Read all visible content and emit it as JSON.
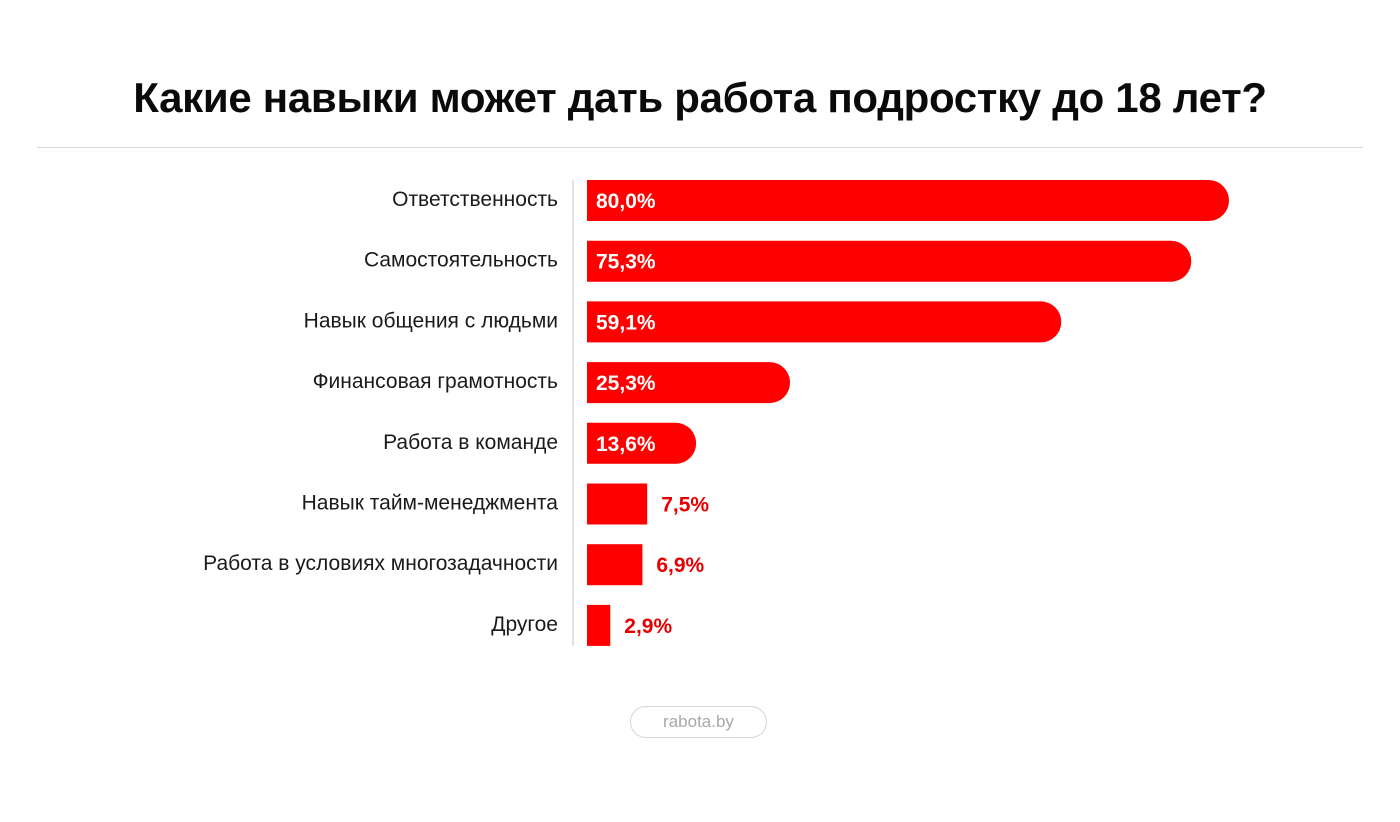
{
  "title": "Какие навыки может дать работа подростку до 18 лет?",
  "source": "rabota.by",
  "colors": {
    "bar": "#ff0000",
    "label_inside": "#ffffff",
    "label_outside": "#e60000",
    "axis": "#d9d9d9",
    "category_text": "#1a1a1a"
  },
  "chart_data": {
    "type": "bar",
    "orientation": "horizontal",
    "title": "Какие навыки может дать работа подростку до 18 лет?",
    "categories": [
      "Ответственность",
      "Самостоятельность",
      "Навык общения с людьми",
      "Финансовая грамотность",
      "Работа в команде",
      "Навык тайм-менеджмента",
      "Работа в условиях многозадачности",
      "Другое"
    ],
    "values": [
      80.0,
      75.3,
      59.1,
      25.3,
      13.6,
      7.5,
      6.9,
      2.9
    ],
    "value_labels": [
      "80,0%",
      "75,3%",
      "59,1%",
      "25,3%",
      "13,6%",
      "7,5%",
      "6,9%",
      "2,9%"
    ],
    "unit": "%",
    "xlim": [
      0,
      80
    ],
    "grid": false,
    "legend": "none"
  }
}
